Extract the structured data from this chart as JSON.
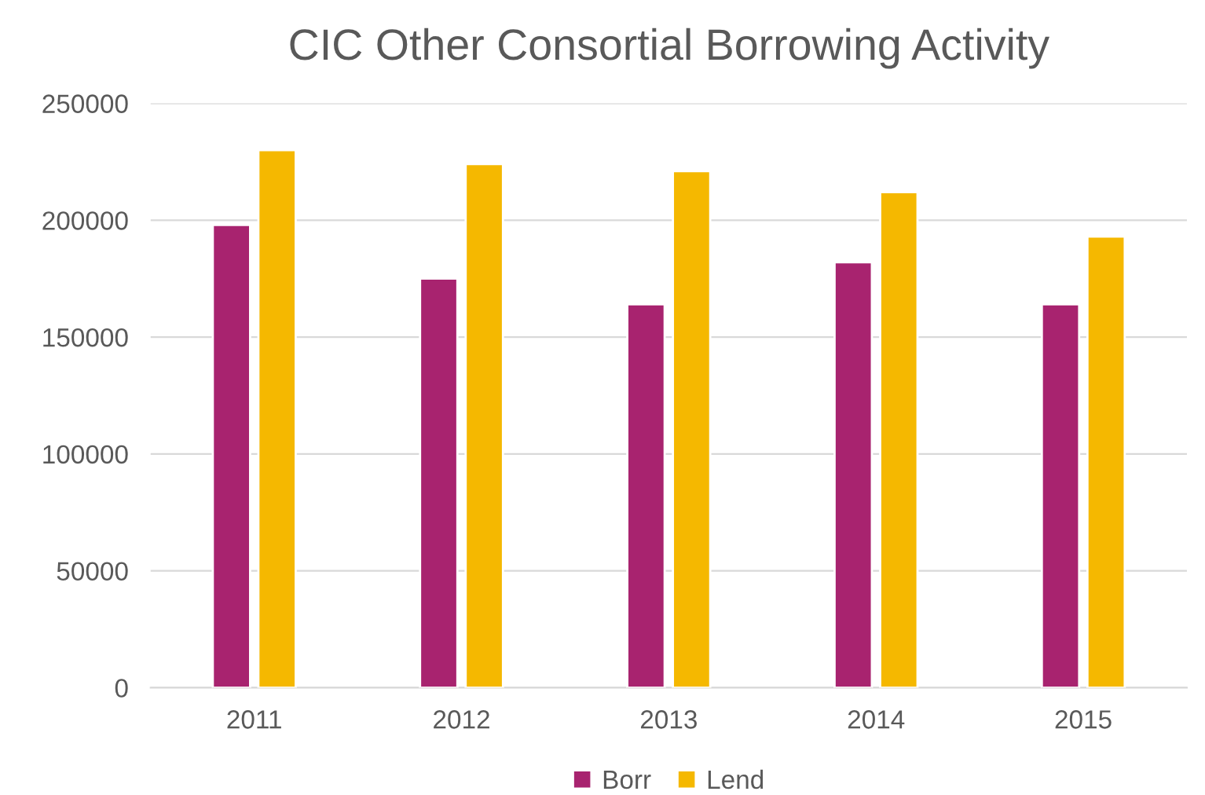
{
  "chart_data": {
    "type": "bar",
    "title": "CIC Other Consortial Borrowing Activity",
    "categories": [
      "2011",
      "2012",
      "2013",
      "2014",
      "2015"
    ],
    "series": [
      {
        "name": "Borr",
        "color": "#a8236f",
        "values": [
          198000,
          175000,
          164000,
          182000,
          164000
        ]
      },
      {
        "name": "Lend",
        "color": "#f5b800",
        "values": [
          230000,
          224000,
          221000,
          212000,
          193000
        ]
      }
    ],
    "ylim": [
      0,
      250000
    ],
    "yticks": [
      0,
      50000,
      100000,
      150000,
      200000,
      250000
    ],
    "grid": "y",
    "legend": "bottom"
  }
}
